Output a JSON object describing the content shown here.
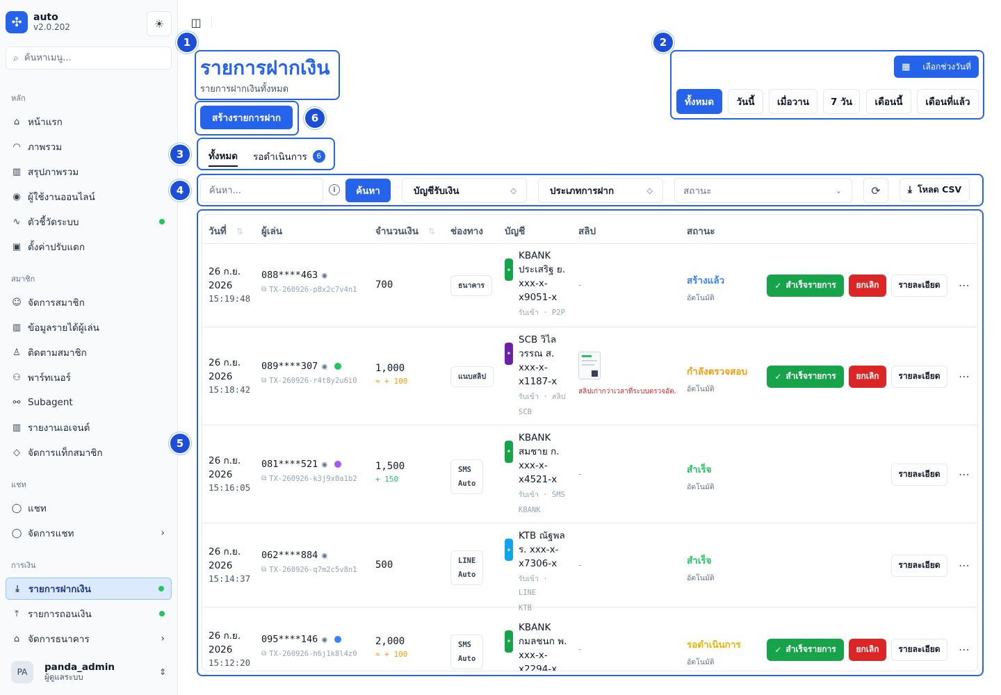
{
  "app": {
    "name": "auto",
    "version": "v2.0.202"
  },
  "sidebar": {
    "search_placeholder": "ค้นหาเมนู...",
    "groups": [
      {
        "label": "หลัก",
        "items": [
          {
            "label": "หน้าแรก",
            "icon": "home-icon"
          },
          {
            "label": "ภาพรวม",
            "icon": "gauge-icon"
          },
          {
            "label": "สรุปภาพรวม",
            "icon": "bar-chart-icon"
          },
          {
            "label": "ผู้ใช้งานออนไลน์",
            "icon": "radio-icon"
          },
          {
            "label": "ตัวชี้วัดระบบ",
            "icon": "activity-icon",
            "dot": true
          },
          {
            "label": "ตั้งค่าปรับแตก",
            "icon": "gift-icon"
          }
        ]
      },
      {
        "label": "สมาชิก",
        "items": [
          {
            "label": "จัดการสมาชิก",
            "icon": "users-icon"
          },
          {
            "label": "ข้อมูลรายได้ผู้เล่น",
            "icon": "bar-chart-icon"
          },
          {
            "label": "ติดตามสมาชิก",
            "icon": "user-search-icon"
          },
          {
            "label": "พาร์ทเนอร์",
            "icon": "handshake-icon"
          },
          {
            "label": "Subagent",
            "icon": "network-icon"
          },
          {
            "label": "รายงานเอเจนต์",
            "icon": "bar-chart-icon"
          },
          {
            "label": "จัดการแท็กสมาชิก",
            "icon": "tag-icon"
          }
        ]
      },
      {
        "label": "แชท",
        "items": [
          {
            "label": "แชท",
            "icon": "chat-icon"
          },
          {
            "label": "จัดการแชท",
            "icon": "chat-icon",
            "chevron": true
          }
        ]
      },
      {
        "label": "การเงิน",
        "items": [
          {
            "label": "รายการฝากเงิน",
            "icon": "download-icon",
            "dot": true,
            "active": true
          },
          {
            "label": "รายการถอนเงิน",
            "icon": "upload-icon",
            "dot": true
          },
          {
            "label": "จัดการธนาคาร",
            "icon": "bank-icon",
            "chevron": true
          }
        ]
      }
    ],
    "user": {
      "initials": "PA",
      "name": "panda_admin",
      "role": "ผู้ดูแลระบบ"
    }
  },
  "annotations": [
    "1",
    "2",
    "3",
    "4",
    "5",
    "6"
  ],
  "header": {
    "title": "รายการฝากเงิน",
    "subtitle": "รายการฝากเงินทั้งหมด",
    "create_label": "สร้างรายการฝาก",
    "date_range_label": "เลือกช่วงวันที่",
    "quick_filters": [
      "ทั้งหมด",
      "วันนี้",
      "เมื่อวาน",
      "7 วัน",
      "เดือนนี้",
      "เดือนที่แล้ว"
    ],
    "quick_filter_active": "ทั้งหมด"
  },
  "tabs": [
    {
      "label": "ทั้งหมด",
      "active": true
    },
    {
      "label": "รอดำเนินการ",
      "count": "6"
    }
  ],
  "filters": {
    "search_placeholder": "ค้นหา...",
    "search_button": "ค้นหา",
    "account_select": "บัญชีรับเงิน",
    "type_select": "ประเภทการฝาก",
    "status_placeholder": "สถานะ",
    "csv_label": "โหลด CSV"
  },
  "table": {
    "columns": [
      "วันที่",
      "ผู้เล่น",
      "จำนวนเงิน",
      "ช่องทาง",
      "บัญชี",
      "สลิป",
      "สถานะ"
    ],
    "actions": {
      "success": "สำเร็จรายการ",
      "cancel": "ยกเลิก",
      "detail": "รายละเอียด"
    },
    "rows": [
      {
        "date": "26 ก.ย.",
        "year": "2026",
        "time": "15:19:48",
        "phone": "088****463",
        "txid": "TX-260926-p8x2c7v4n1",
        "amount": "700",
        "bonus": "",
        "channel": [
          "ธนาคาร"
        ],
        "account": [
          "KBANK",
          "ประเสริฐ ย.",
          "xxx-x-",
          "x9051-x"
        ],
        "account_meta": [
          "รับเข้า · P2P"
        ],
        "bank_color": "#16a34a",
        "slip": "-",
        "status": "สร้างแล้ว",
        "status_sub": "อัตโนมัติ",
        "status_color": "blue",
        "show_actions": true
      },
      {
        "date": "26 ก.ย.",
        "year": "2026",
        "time": "15:18:42",
        "phone": "089****307",
        "dot_color": "#22c55e",
        "txid": "TX-260926-r4t8y2u6i0",
        "amount": "1,000",
        "bonus": "≈ + 100",
        "bonus_color": "orange",
        "channel": [
          "แนบสลิป"
        ],
        "account": [
          "SCB วิไล",
          "วรรณ ส.",
          "xxx-x-",
          "x1187-x"
        ],
        "account_meta": [
          "รับเข้า · สลิป",
          "SCB"
        ],
        "bank_color": "#6b21a8",
        "slip_img": true,
        "slip_warn": "สลิปเก่ากว่าเวลาที่ระบบตรวจอัต...",
        "status": "กำลังตรวจสอบ",
        "status_sub": "อัตโนมัติ",
        "status_color": "orange",
        "show_actions": true
      },
      {
        "date": "26 ก.ย.",
        "year": "2026",
        "time": "15:16:05",
        "phone": "081****521",
        "dot_color": "#a855f7",
        "txid": "TX-260926-k3j9x0a1b2",
        "amount": "1,500",
        "bonus": "+ 150",
        "bonus_color": "green",
        "channel": [
          "SMS",
          "Auto"
        ],
        "account": [
          "KBANK",
          "สมชาย ก.",
          "xxx-x-",
          "x4521-x"
        ],
        "account_meta": [
          "รับเข้า · SMS",
          "KBANK"
        ],
        "bank_color": "#16a34a",
        "slip": "-",
        "status": "สำเร็จ",
        "status_sub": "อัตโนมัติ",
        "status_color": "green",
        "show_actions": false
      },
      {
        "date": "26 ก.ย.",
        "year": "2026",
        "time": "15:14:37",
        "phone": "062****884",
        "txid": "TX-260926-q7m2c5v8n1",
        "amount": "500",
        "bonus": "",
        "channel": [
          "LINE",
          "Auto"
        ],
        "account": [
          "KTB ณัฐพล",
          "ร. xxx-x-",
          "x7306-x"
        ],
        "account_meta": [
          "รับเข้า · LINE",
          "KTB"
        ],
        "bank_color": "#0ea5e9",
        "slip": "-",
        "status": "สำเร็จ",
        "status_sub": "อัตโนมัติ",
        "status_color": "green",
        "show_actions": false
      },
      {
        "date": "26 ก.ย.",
        "year": "2026",
        "time": "15:12:20",
        "phone": "095****146",
        "dot_color": "#3b82f6",
        "txid": "TX-260926-h6j1k8l4z0",
        "amount": "2,000",
        "bonus": "≈ + 100",
        "bonus_color": "orange",
        "channel": [
          "SMS",
          "Auto"
        ],
        "account": [
          "KBANK",
          "กมลชนก พ.",
          "xxx-x-",
          "x2294-x"
        ],
        "account_meta": [],
        "bank_color": "#16a34a",
        "slip": "-",
        "status": "รอดำเนินการ",
        "status_sub": "อัตโนมัติ",
        "status_color": "amber",
        "show_actions": true
      }
    ]
  },
  "colors": {
    "accent": "#2563eb",
    "success": "#16a34a",
    "danger": "#dc2626"
  }
}
